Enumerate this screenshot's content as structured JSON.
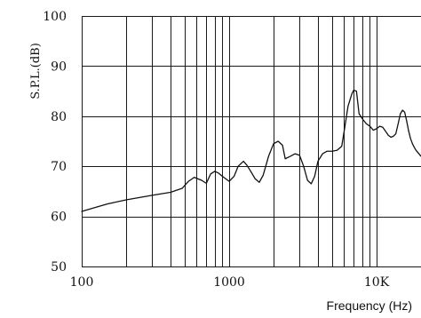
{
  "chart_data": {
    "type": "line",
    "title": "",
    "xlabel": "Frequency (Hz)",
    "ylabel": "S.P.L.(dB)",
    "xscale": "log",
    "xlim": [
      100,
      20000
    ],
    "ylim": [
      50,
      100
    ],
    "x_tick_values": [
      100,
      1000,
      10000
    ],
    "x_tick_labels": [
      "100",
      "1000",
      "10K"
    ],
    "y_tick_values": [
      50,
      60,
      70,
      80,
      90,
      100
    ],
    "y_tick_labels": [
      "50",
      "60",
      "70",
      "80",
      "90",
      "100"
    ],
    "grid": true,
    "legend": "none",
    "line_color": "#111111",
    "series": [
      {
        "name": "",
        "x": [
          100,
          150,
          200,
          300,
          400,
          480,
          530,
          580,
          650,
          700,
          750,
          800,
          850,
          900,
          1000,
          1080,
          1150,
          1250,
          1320,
          1400,
          1500,
          1600,
          1700,
          1850,
          2000,
          2150,
          2300,
          2400,
          2600,
          2800,
          3000,
          3200,
          3400,
          3600,
          3800,
          4000,
          4300,
          4600,
          5000,
          5400,
          5800,
          6100,
          6400,
          6800,
          7000,
          7300,
          7600,
          8000,
          8500,
          9000,
          9500,
          10000,
          10500,
          11000,
          11500,
          12000,
          12500,
          13000,
          13500,
          14000,
          14500,
          15000,
          15500,
          16000,
          16500,
          17000,
          17500,
          18000,
          18500,
          19000,
          20000
        ],
        "values": [
          61.0,
          62.5,
          63.3,
          64.2,
          64.8,
          65.6,
          67.0,
          67.8,
          67.2,
          66.6,
          68.5,
          69.0,
          68.6,
          68.0,
          67.0,
          68.0,
          70.0,
          71.0,
          70.2,
          69.0,
          67.5,
          66.8,
          68.2,
          72.0,
          74.5,
          75.0,
          74.2,
          71.5,
          72.0,
          72.5,
          72.2,
          70.0,
          67.2,
          66.5,
          68.0,
          71.0,
          72.5,
          73.0,
          73.0,
          73.2,
          74.0,
          78.0,
          82.0,
          84.5,
          85.2,
          85.0,
          80.5,
          79.5,
          78.5,
          78.0,
          77.2,
          77.5,
          78.0,
          77.8,
          77.0,
          76.2,
          75.8,
          76.0,
          76.5,
          78.5,
          80.5,
          81.2,
          80.8,
          79.0,
          77.0,
          75.5,
          74.5,
          73.8,
          73.2,
          72.8,
          72.0
        ]
      }
    ]
  }
}
